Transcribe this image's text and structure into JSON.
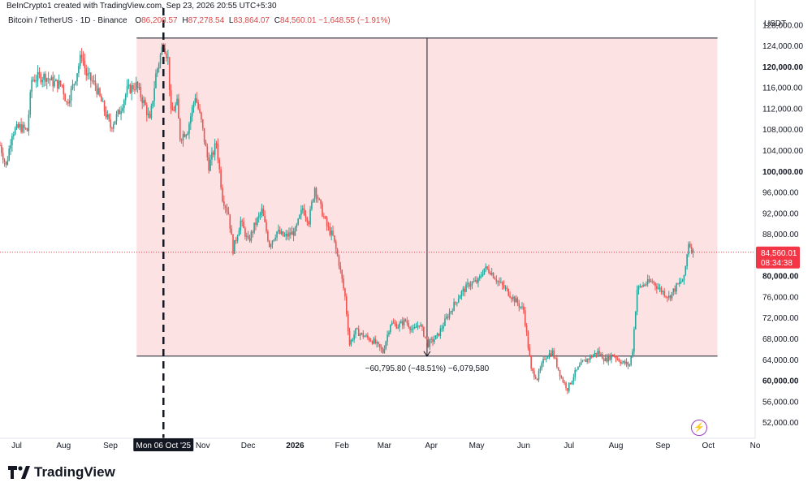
{
  "header": {
    "watermark": "BeInCrypto1 created with TradingView.com, Sep 23, 2026 20:55 UTC+5:30",
    "symbol": "Bitcoin / TetherUS · 1D · Binance",
    "open_label": "O",
    "open": "86,208.57",
    "high_label": "H",
    "high": "87,278.54",
    "low_label": "L",
    "low": "83,864.07",
    "close_label": "C",
    "close": "84,560.01",
    "change": "−1,648.55 (−1.91%)"
  },
  "footer": {
    "brand": "TradingView"
  },
  "colors": {
    "up": "#26a69a",
    "down": "#ef5350",
    "range_fill": "#fde2e4",
    "price_tag": "#f23645"
  },
  "chart_data": {
    "type": "candlestick",
    "y_axis_label": "USDT",
    "ylim": [
      49000,
      132000
    ],
    "y_ticks": [
      "52,000.00",
      "56,000.00",
      "60,000.00",
      "64,000.00",
      "68,000.00",
      "72,000.00",
      "76,000.00",
      "80,000.00",
      "84,000.00",
      "88,000.00",
      "92,000.00",
      "96,000.00",
      "100,000.00",
      "104,000.00",
      "108,000.00",
      "112,000.00",
      "116,000.00",
      "120,000.00",
      "124,000.00",
      "128,000.00"
    ],
    "y_ticks_bold": [
      "60,000.00",
      "80,000.00",
      "100,000.00",
      "120,000.00"
    ],
    "x_ticks": [
      {
        "label": "Jul",
        "date": "2025-07-01"
      },
      {
        "label": "Aug",
        "date": "2025-08-01"
      },
      {
        "label": "Sep",
        "date": "2025-09-01"
      },
      {
        "label": "Nov",
        "date": "2025-11-01"
      },
      {
        "label": "Dec",
        "date": "2025-12-01"
      },
      {
        "label": "2026",
        "date": "2026-01-01",
        "bold": true
      },
      {
        "label": "Feb",
        "date": "2026-02-01"
      },
      {
        "label": "Mar",
        "date": "2026-03-01"
      },
      {
        "label": "Apr",
        "date": "2026-04-01"
      },
      {
        "label": "May",
        "date": "2026-05-01"
      },
      {
        "label": "Jun",
        "date": "2026-06-01"
      },
      {
        "label": "Jul",
        "date": "2026-07-01"
      },
      {
        "label": "Aug",
        "date": "2026-08-01"
      },
      {
        "label": "Sep",
        "date": "2026-09-01"
      },
      {
        "label": "Oct",
        "date": "2026-10-01"
      },
      {
        "label": "No",
        "date": "2026-11-01"
      }
    ],
    "x_start": "2025-06-20",
    "x_end": "2026-11-01",
    "crosshair": {
      "date": "2025-10-06",
      "label": "Mon 06 Oct '25"
    },
    "current_price": {
      "value": 84560.01,
      "label": "84,560.01",
      "countdown": "08:34:38"
    },
    "range_measure": {
      "start_date": "2025-10-06",
      "end_date": "2026-09-21",
      "top_price": 125500,
      "bottom_price": 64700,
      "label": "−60,795.80 (−48.51%) −6,079,580"
    },
    "close_path": [
      [
        "2025-06-20",
        105000
      ],
      [
        "2025-06-24",
        101000
      ],
      [
        "2025-06-28",
        107500
      ],
      [
        "2025-07-03",
        108500
      ],
      [
        "2025-07-08",
        107800
      ],
      [
        "2025-07-11",
        117500
      ],
      [
        "2025-07-15",
        118000
      ],
      [
        "2025-07-20",
        118200
      ],
      [
        "2025-07-25",
        117000
      ],
      [
        "2025-07-31",
        116500
      ],
      [
        "2025-08-03",
        113000
      ],
      [
        "2025-08-08",
        117000
      ],
      [
        "2025-08-13",
        122500
      ],
      [
        "2025-08-16",
        118500
      ],
      [
        "2025-08-22",
        116500
      ],
      [
        "2025-08-27",
        112500
      ],
      [
        "2025-09-01",
        108500
      ],
      [
        "2025-09-07",
        111500
      ],
      [
        "2025-09-12",
        115500
      ],
      [
        "2025-09-18",
        116500
      ],
      [
        "2025-09-24",
        112500
      ],
      [
        "2025-09-27",
        109500
      ],
      [
        "2025-10-01",
        118500
      ],
      [
        "2025-10-06",
        124700
      ],
      [
        "2025-10-09",
        121500
      ],
      [
        "2025-10-11",
        111000
      ],
      [
        "2025-10-15",
        113000
      ],
      [
        "2025-10-17",
        106500
      ],
      [
        "2025-10-22",
        108000
      ],
      [
        "2025-10-27",
        114500
      ],
      [
        "2025-10-31",
        109500
      ],
      [
        "2025-11-05",
        101000
      ],
      [
        "2025-11-10",
        105500
      ],
      [
        "2025-11-14",
        95000
      ],
      [
        "2025-11-18",
        92000
      ],
      [
        "2025-11-21",
        85000
      ],
      [
        "2025-11-26",
        90500
      ],
      [
        "2025-12-01",
        86500
      ],
      [
        "2025-12-05",
        89500
      ],
      [
        "2025-12-10",
        92500
      ],
      [
        "2025-12-15",
        86000
      ],
      [
        "2025-12-20",
        88500
      ],
      [
        "2025-12-25",
        87500
      ],
      [
        "2026-01-01",
        88500
      ],
      [
        "2026-01-06",
        93000
      ],
      [
        "2026-01-10",
        90500
      ],
      [
        "2026-01-14",
        97000
      ],
      [
        "2026-01-18",
        93000
      ],
      [
        "2026-01-22",
        89500
      ],
      [
        "2026-01-26",
        87500
      ],
      [
        "2026-01-30",
        82500
      ],
      [
        "2026-02-03",
        76000
      ],
      [
        "2026-02-06",
        67000
      ],
      [
        "2026-02-10",
        69500
      ],
      [
        "2026-02-16",
        68500
      ],
      [
        "2026-02-22",
        67500
      ],
      [
        "2026-02-28",
        65500
      ],
      [
        "2026-03-05",
        71000
      ],
      [
        "2026-03-10",
        70500
      ],
      [
        "2026-03-15",
        71500
      ],
      [
        "2026-03-20",
        69500
      ],
      [
        "2026-03-24",
        71000
      ],
      [
        "2026-03-30",
        67000
      ],
      [
        "2026-04-05",
        68500
      ],
      [
        "2026-04-12",
        72500
      ],
      [
        "2026-04-20",
        76500
      ],
      [
        "2026-04-26",
        78500
      ],
      [
        "2026-05-02",
        79000
      ],
      [
        "2026-05-06",
        81500
      ],
      [
        "2026-05-10",
        81000
      ],
      [
        "2026-05-15",
        79000
      ],
      [
        "2026-05-20",
        77500
      ],
      [
        "2026-05-26",
        75500
      ],
      [
        "2026-06-01",
        73500
      ],
      [
        "2026-06-06",
        62000
      ],
      [
        "2026-06-10",
        60500
      ],
      [
        "2026-06-15",
        64500
      ],
      [
        "2026-06-20",
        65500
      ],
      [
        "2026-06-26",
        60500
      ],
      [
        "2026-06-30",
        58500
      ],
      [
        "2026-07-05",
        61500
      ],
      [
        "2026-07-10",
        63500
      ],
      [
        "2026-07-15",
        64500
      ],
      [
        "2026-07-20",
        65500
      ],
      [
        "2026-07-25",
        64000
      ],
      [
        "2026-07-30",
        65000
      ],
      [
        "2026-08-05",
        63500
      ],
      [
        "2026-08-10",
        63000
      ],
      [
        "2026-08-12",
        66000
      ],
      [
        "2026-08-15",
        77500
      ],
      [
        "2026-08-20",
        78500
      ],
      [
        "2026-08-25",
        79000
      ],
      [
        "2026-08-30",
        77500
      ],
      [
        "2026-09-05",
        76000
      ],
      [
        "2026-09-10",
        78000
      ],
      [
        "2026-09-15",
        79500
      ],
      [
        "2026-09-18",
        86500
      ],
      [
        "2026-09-21",
        84560
      ]
    ]
  }
}
